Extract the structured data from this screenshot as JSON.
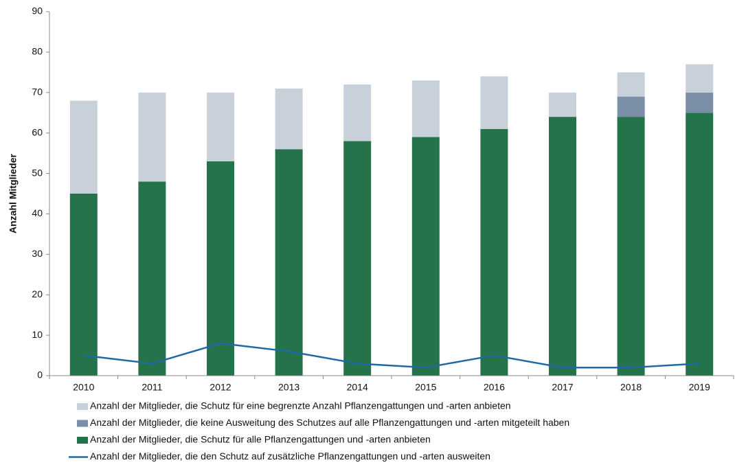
{
  "chart_data": {
    "type": "bar",
    "stacked": true,
    "y_label": "Anzahl Mitglieder",
    "categories": [
      "2010",
      "2011",
      "2012",
      "2013",
      "2014",
      "2015",
      "2016",
      "2017",
      "2018",
      "2019"
    ],
    "series": [
      {
        "name": "Anzahl der Mitglieder, die Schutz für alle Pflanzengattungen und -arten anbieten",
        "color": "#25734b",
        "type": "bar",
        "values": [
          45,
          48,
          53,
          56,
          58,
          59,
          61,
          64,
          64,
          65
        ]
      },
      {
        "name": "Anzahl der Mitglieder, die keine Ausweitung des Schutzes auf alle Pflanzengattungen und -arten mitgeteilt haben",
        "color": "#7a8ea6",
        "type": "bar",
        "values": [
          0,
          0,
          0,
          0,
          0,
          0,
          0,
          0,
          5,
          5
        ]
      },
      {
        "name": "Anzahl der Mitglieder, die Schutz für eine begrenzte Anzahl Pflanzengattungen und -arten anbieten",
        "color": "#c8d0da",
        "type": "bar",
        "values": [
          23,
          22,
          17,
          15,
          14,
          14,
          13,
          6,
          6,
          7
        ]
      },
      {
        "name": "Anzahl der Mitglieder, die den Schutz auf zusätzliche Pflanzengattungen und -arten ausweiten",
        "color": "#1f6aa5",
        "type": "line",
        "values": [
          5,
          3,
          8,
          6,
          3,
          2,
          5,
          2,
          2,
          3
        ]
      }
    ],
    "legend_order": [
      2,
      1,
      0,
      3
    ],
    "ylim": [
      0,
      90
    ],
    "yticks": [
      0,
      10,
      20,
      30,
      40,
      50,
      60,
      70,
      80,
      90
    ]
  }
}
